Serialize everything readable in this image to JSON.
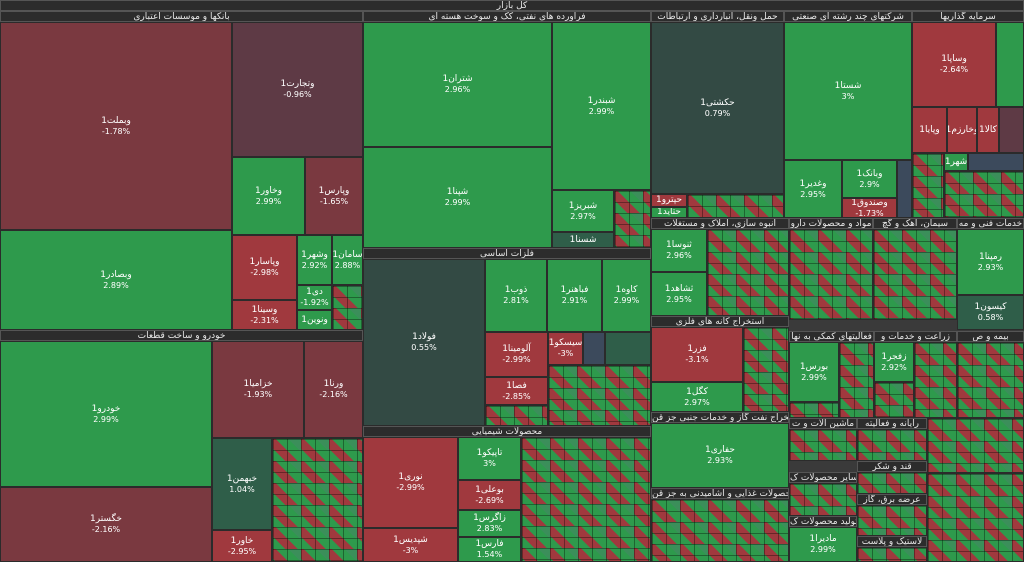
{
  "market_title": "کل بازار",
  "sectors": {
    "banks": "بانکها و موسسات اعتباری",
    "refining": "فراورده های نفتی، کک و سوخت هسته ای",
    "transport": "حمل ونقل، انبارداری و ارتباطات",
    "multi": "شرکتهای چند رشته ای صنعتی",
    "invest": "سرمایه گذاریها",
    "metals": "فلزات اساسی",
    "auto": "خودرو و ساخت قطعات",
    "chemical": "محصولات شیمیایی",
    "mining": "استخراج کانه های فلزی",
    "oilgas": "استخراج نفت گاز و خدمات جنبی جز قن",
    "food": "محصولات غذایی و آشامیدنی به جز قن",
    "build": "انبوه سازی، املاک و مستغلات",
    "pharma": "مواد و محصولات دارو",
    "cement": "سیمان، آهک و گچ",
    "tech": "خدمات فنی و مه",
    "support": "فعالیتهای کمکی به نها",
    "agri": "زراعت و خدمات و",
    "insurance": "بیمه و ص",
    "machinery": "ماشین آلات و ت",
    "computer": "رایانه و فعالیته",
    "sugar": "قند و شکر",
    "other_products": "سایر محصولات ک",
    "electricity": "عرضه برق، گاز",
    "rubber": "لاستیک و پلاست",
    "medical": "تولید محصولات ک"
  },
  "tiles": {
    "vbmellat": {
      "name": "وبملت1",
      "pct": "-1.78%"
    },
    "vtejarat": {
      "name": "وتجارت1",
      "pct": "-0.96%"
    },
    "vbsader": {
      "name": "وبصادر1",
      "pct": "2.89%"
    },
    "vkhavar": {
      "name": "وخاور1",
      "pct": "2.99%"
    },
    "vparsi": {
      "name": "وپارس1",
      "pct": "-1.65%"
    },
    "vpasar": {
      "name": "وپاسار1",
      "pct": "-2.98%"
    },
    "vsina": {
      "name": "وسینا1",
      "pct": "-2.31%"
    },
    "vshahr": {
      "name": "وشهر1",
      "pct": "2.92%"
    },
    "saman": {
      "name": "سامان1",
      "pct": "2.88%"
    },
    "di": {
      "name": "دی1",
      "pct": "-1.92%"
    },
    "vnovin": {
      "name": "ونوین1",
      "pct": ""
    },
    "shetran": {
      "name": "شتران1",
      "pct": "2.96%"
    },
    "shbandar": {
      "name": "شبندر1",
      "pct": "2.99%"
    },
    "shpna": {
      "name": "شپنا1",
      "pct": "2.99%"
    },
    "shbriz": {
      "name": "شبریز1",
      "pct": "2.97%"
    },
    "shesna": {
      "name": "شسنا1",
      "pct": ""
    },
    "hakashti": {
      "name": "حکشتی1",
      "pct": "0.79%"
    },
    "hrahe": {
      "name": "حپترو1",
      "pct": ""
    },
    "hafara": {
      "name": "حتاید1",
      "pct": ""
    },
    "shasta": {
      "name": "شستا1",
      "pct": "3%"
    },
    "vghadir": {
      "name": "وغدیر1",
      "pct": "2.95%"
    },
    "vbank": {
      "name": "وبانک1",
      "pct": "2.9%"
    },
    "vsandough": {
      "name": "وصندوق1",
      "pct": "-1.73%"
    },
    "vsapa": {
      "name": "وساپا1",
      "pct": "-2.64%"
    },
    "vpaya": {
      "name": "وپایا1",
      "pct": ""
    },
    "vkharazm": {
      "name": "وخارزم1",
      "pct": ""
    },
    "kala": {
      "name": "کالا1",
      "pct": ""
    },
    "shahr": {
      "name": "شهر1",
      "pct": ""
    },
    "foolad": {
      "name": "فولاد1",
      "pct": "0.55%"
    },
    "zob": {
      "name": "ذوب1",
      "pct": "2.81%"
    },
    "fabahonar": {
      "name": "فباهنر1",
      "pct": "2.91%"
    },
    "kave": {
      "name": "کاوه1",
      "pct": "2.99%"
    },
    "alumina": {
      "name": "آلومینا1",
      "pct": "-2.99%"
    },
    "sisco": {
      "name": "سیسکو1",
      "pct": "-3%"
    },
    "fesa": {
      "name": "فصا1",
      "pct": "-2.85%"
    },
    "khodro": {
      "name": "خودرو1",
      "pct": "2.99%"
    },
    "khazamia": {
      "name": "خزامیا1",
      "pct": "-1.93%"
    },
    "vrna": {
      "name": "ورنا1",
      "pct": "-2.16%"
    },
    "khbahman": {
      "name": "خبهمن1",
      "pct": "1.04%"
    },
    "khgostar": {
      "name": "خگستر1",
      "pct": "-2.16%"
    },
    "khavar": {
      "name": "خاور1",
      "pct": "-2.95%"
    },
    "nori": {
      "name": "نوری1",
      "pct": "-2.99%"
    },
    "shepdis": {
      "name": "شپدیس1",
      "pct": "-3%"
    },
    "taipiko": {
      "name": "تاپیکو1",
      "pct": "3%"
    },
    "buali": {
      "name": "بوعلی1",
      "pct": "-2.69%"
    },
    "zagros": {
      "name": "زاگرس1",
      "pct": "2.83%"
    },
    "fars": {
      "name": "فارس1",
      "pct": "1.54%"
    },
    "fezar": {
      "name": "فزر1",
      "pct": "-3.1%"
    },
    "kgol": {
      "name": "کگل1",
      "pct": "2.97%"
    },
    "hafari": {
      "name": "حفاری1",
      "pct": "2.93%"
    },
    "shosaz": {
      "name": "ثنوسا1",
      "pct": "2.96%"
    },
    "shahed": {
      "name": "ثشاهد1",
      "pct": "2.95%"
    },
    "rampna": {
      "name": "رمپنا1",
      "pct": "2.93%"
    },
    "kison": {
      "name": "کیسون1",
      "pct": "0.58%"
    },
    "bors": {
      "name": "بورس1",
      "pct": "2.99%"
    },
    "zagfar": {
      "name": "زفجر1",
      "pct": "2.92%"
    },
    "madira": {
      "name": "مادیرا1",
      "pct": "2.99%"
    }
  }
}
